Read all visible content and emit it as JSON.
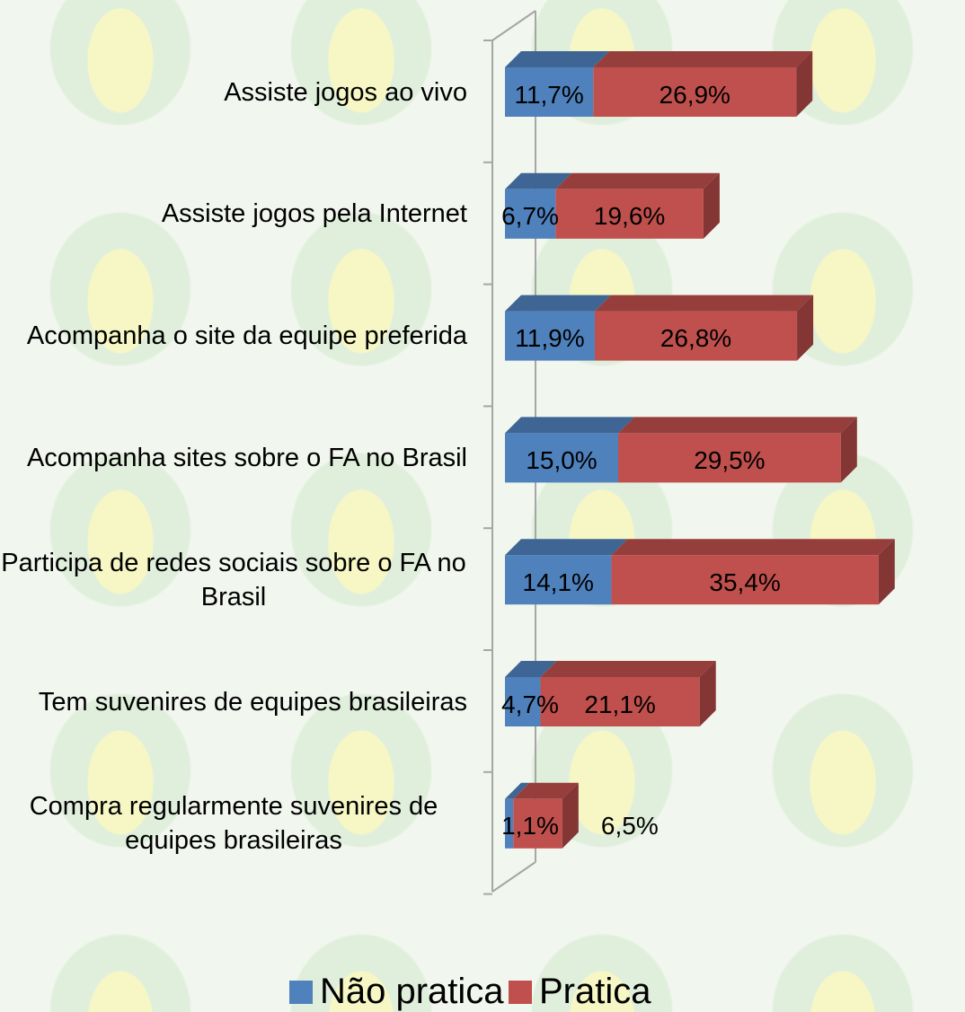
{
  "chart_data": {
    "type": "bar",
    "orientation": "horizontal",
    "stacked": true,
    "categories": [
      "Assiste jogos ao vivo",
      "Assiste jogos pela Internet",
      "Acompanha o site da equipe preferida",
      "Acompanha sites sobre o FA no Brasil",
      "Participa de redes sociais sobre o FA no Brasil",
      "Tem suvenires de equipes brasileiras",
      "Compra regularmente suvenires de equipes brasileiras"
    ],
    "series": [
      {
        "name": "Não pratica",
        "color": "#4f81bd",
        "values": [
          11.7,
          6.7,
          11.9,
          15.0,
          14.1,
          4.7,
          1.1
        ],
        "value_labels": [
          "11,7%",
          "6,7%",
          "11,9%",
          "15,0%",
          "14,1%",
          "4,7%",
          "1,1%"
        ]
      },
      {
        "name": "Pratica",
        "color": "#c0504d",
        "values": [
          26.9,
          19.6,
          26.8,
          29.5,
          35.4,
          21.1,
          6.5
        ],
        "value_labels": [
          "26,9%",
          "19,6%",
          "26,8%",
          "29,5%",
          "35,4%",
          "21,1%",
          "6,5%"
        ]
      }
    ],
    "legend": "bottom"
  }
}
